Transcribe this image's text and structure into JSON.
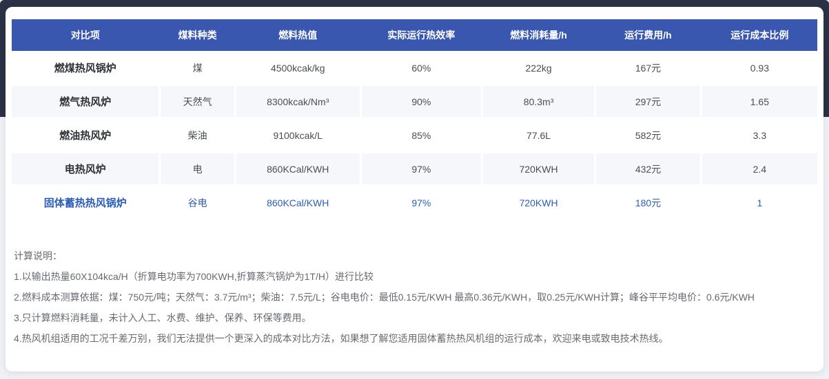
{
  "theme": {
    "header_bg": "#3A57B0",
    "row_alt_bg": "#F6F7FA",
    "highlight_color": "#2B5CB8",
    "navy_band": "#2C3246",
    "page_bg": "#F0F1F4"
  },
  "table": {
    "columns": [
      "对比项",
      "煤料种类",
      "燃料热值",
      "实际运行热效率",
      "燃料消耗量/h",
      "运行费用/h",
      "运行成本比例"
    ],
    "rows": [
      {
        "cells": [
          "燃煤热风锅炉",
          "煤",
          "4500kcak/kg",
          "60%",
          "222kg",
          "167元",
          "0.93"
        ],
        "highlight": false
      },
      {
        "cells": [
          "燃气热风炉",
          "天然气",
          "8300kcak/Nm³",
          "90%",
          "80.3m³",
          "297元",
          "1.65"
        ],
        "highlight": false
      },
      {
        "cells": [
          "燃油热风炉",
          "柴油",
          "9100kcak/L",
          "85%",
          "77.6L",
          "582元",
          "3.3"
        ],
        "highlight": false
      },
      {
        "cells": [
          "电热风炉",
          "电",
          "860KCal/KWH",
          "97%",
          "720KWH",
          "432元",
          "2.4"
        ],
        "highlight": false
      },
      {
        "cells": [
          "固体蓄热热风锅炉",
          "谷电",
          "860KCal/KWH",
          "97%",
          "720KWH",
          "180元",
          "1"
        ],
        "highlight": true
      }
    ]
  },
  "notes": {
    "title": "计算说明：",
    "items": [
      "1.以输出热量60X104kca/H（折算电功率为700KWH,折算蒸汽锅炉为1T/H）进行比较",
      "2.燃料成本测算依据：煤：750元/吨；天然气：3.7元/m³；柴油：7.5元/L；谷电电价：最低0.15元/KWH 最高0.36元/KWH，取0.25元/KWH计算；峰谷平平均电价：0.6元/KWH",
      "3.只计算燃料消耗量，未计入人工、水费、维护、保养、环保等费用。",
      "4.热风机组适用的工况千差万别，我们无法提供一个更深入的成本对比方法，如果想了解您适用固体蓄热热风机组的运行成本，欢迎来电或致电技术热线。"
    ]
  }
}
